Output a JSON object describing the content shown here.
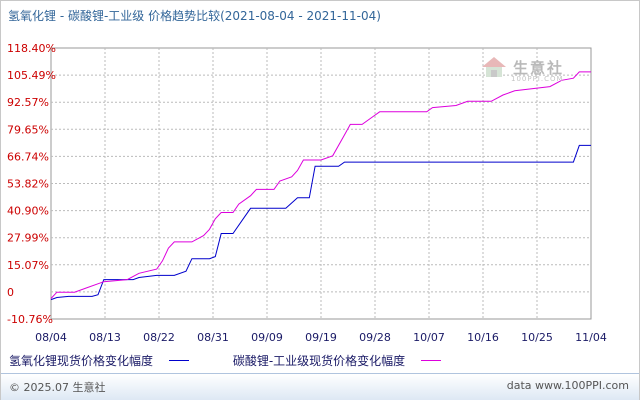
{
  "title": "氢氧化锂 - 碳酸锂-工业级 价格趋势比较(2021-08-04 - 2021-11-04)",
  "watermark": {
    "logo_icon": "house-logo-icon",
    "text": "生意社",
    "sub": "100PPI.COM"
  },
  "footer": {
    "copyright": "© 2025.07 生意社",
    "site": "data www.100PPI.com"
  },
  "chart_data": {
    "type": "line",
    "title": "氢氧化锂 - 碳酸锂-工业级 价格趋势比较(2021-08-04 - 2021-11-04)",
    "xlabel": "",
    "ylabel": "",
    "x_ticks": [
      "08/04",
      "08/13",
      "08/22",
      "08/31",
      "09/09",
      "09/19",
      "09/28",
      "10/07",
      "10/16",
      "10/25",
      "11/04"
    ],
    "y_ticks": [
      "118.40%",
      "105.49%",
      "92.57%",
      "79.65%",
      "66.74%",
      "53.82%",
      "40.90%",
      "27.99%",
      "15.07%",
      "0",
      "-10.76%"
    ],
    "ylim": [
      -10.76,
      118.4
    ],
    "xlim": [
      "2021-08-04",
      "2021-11-04"
    ],
    "grid": true,
    "legend_position": "bottom",
    "series": [
      {
        "name": "氢氧化锂现货价格变化幅度",
        "color": "#0000cc",
        "points": [
          [
            "2021-08-04",
            -1.5
          ],
          [
            "2021-08-05",
            -0.5
          ],
          [
            "2021-08-07",
            0
          ],
          [
            "2021-08-11",
            0
          ],
          [
            "2021-08-12",
            0.8
          ],
          [
            "2021-08-13",
            8
          ],
          [
            "2021-08-18",
            8
          ],
          [
            "2021-08-19",
            9
          ],
          [
            "2021-08-22",
            10
          ],
          [
            "2021-08-25",
            10
          ],
          [
            "2021-08-27",
            12
          ],
          [
            "2021-08-28",
            18
          ],
          [
            "2021-08-31",
            18
          ],
          [
            "2021-09-01",
            19
          ],
          [
            "2021-09-02",
            30
          ],
          [
            "2021-09-04",
            30
          ],
          [
            "2021-09-06",
            38
          ],
          [
            "2021-09-07",
            42
          ],
          [
            "2021-09-13",
            42
          ],
          [
            "2021-09-15",
            47
          ],
          [
            "2021-09-17",
            47
          ],
          [
            "2021-09-18",
            62
          ],
          [
            "2021-09-22",
            62
          ],
          [
            "2021-09-23",
            64
          ],
          [
            "2021-10-01",
            64
          ],
          [
            "2021-11-01",
            64
          ],
          [
            "2021-11-02",
            72
          ],
          [
            "2021-11-04",
            72
          ]
        ]
      },
      {
        "name": "碳酸锂-工业级现货价格变化幅度",
        "color": "#dd00dd",
        "points": [
          [
            "2021-08-04",
            -1
          ],
          [
            "2021-08-05",
            2
          ],
          [
            "2021-08-08",
            2
          ],
          [
            "2021-08-10",
            4
          ],
          [
            "2021-08-13",
            7
          ],
          [
            "2021-08-17",
            8
          ],
          [
            "2021-08-19",
            11
          ],
          [
            "2021-08-22",
            13
          ],
          [
            "2021-08-23",
            17
          ],
          [
            "2021-08-24",
            23
          ],
          [
            "2021-08-25",
            26
          ],
          [
            "2021-08-28",
            26
          ],
          [
            "2021-08-30",
            29
          ],
          [
            "2021-08-31",
            32
          ],
          [
            "2021-09-01",
            37
          ],
          [
            "2021-09-02",
            40
          ],
          [
            "2021-09-04",
            40
          ],
          [
            "2021-09-05",
            44
          ],
          [
            "2021-09-07",
            48
          ],
          [
            "2021-09-08",
            51
          ],
          [
            "2021-09-11",
            51
          ],
          [
            "2021-09-12",
            55
          ],
          [
            "2021-09-14",
            57
          ],
          [
            "2021-09-15",
            60
          ],
          [
            "2021-09-16",
            65
          ],
          [
            "2021-09-19",
            65
          ],
          [
            "2021-09-21",
            67
          ],
          [
            "2021-09-23",
            77
          ],
          [
            "2021-09-24",
            82
          ],
          [
            "2021-09-26",
            82
          ],
          [
            "2021-09-28",
            86
          ],
          [
            "2021-09-29",
            88
          ],
          [
            "2021-10-07",
            88
          ],
          [
            "2021-10-08",
            90
          ],
          [
            "2021-10-12",
            91
          ],
          [
            "2021-10-14",
            93
          ],
          [
            "2021-10-18",
            93
          ],
          [
            "2021-10-20",
            96
          ],
          [
            "2021-10-22",
            98
          ],
          [
            "2021-10-28",
            100
          ],
          [
            "2021-10-30",
            103
          ],
          [
            "2021-11-01",
            104
          ],
          [
            "2021-11-02",
            107
          ],
          [
            "2021-11-04",
            107
          ]
        ]
      }
    ]
  }
}
